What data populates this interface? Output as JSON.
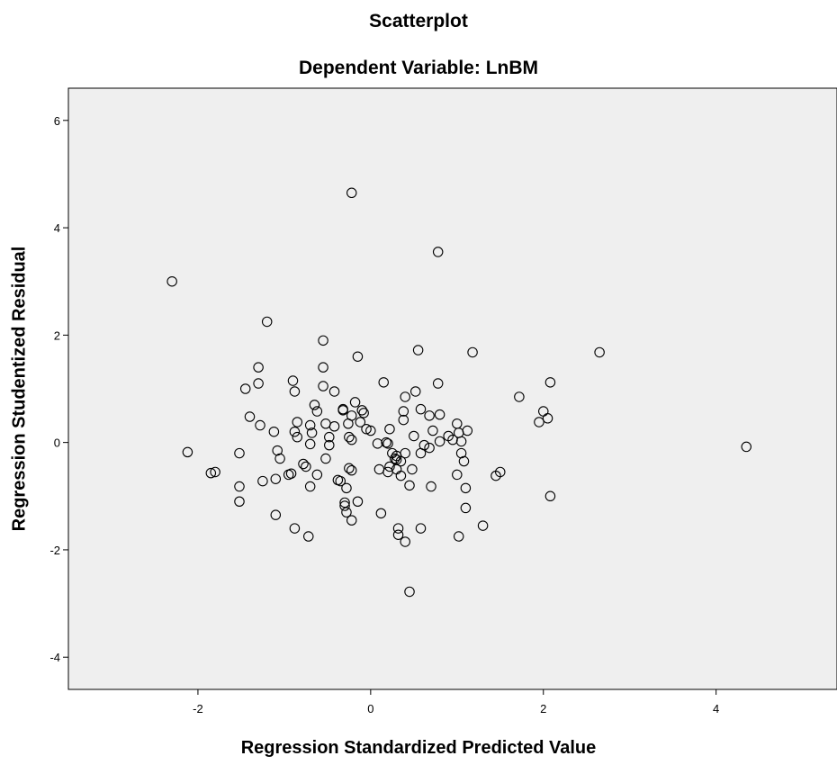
{
  "chart_data": {
    "type": "scatter",
    "title": "Scatterplot",
    "subtitle": "Dependent Variable: LnBM",
    "xlabel": "Regression Standardized Predicted Value",
    "ylabel": "Regression Studentized Residual",
    "xlim": [
      -3.5,
      5.4
    ],
    "ylim": [
      -4.6,
      6.6
    ],
    "xticks": [
      -2,
      0,
      2,
      4
    ],
    "yticks": [
      -4,
      -2,
      0,
      2,
      4,
      6
    ],
    "grid": false,
    "plot_background": "#efefef",
    "marker": "open-circle",
    "points": [
      [
        -2.3,
        3.0
      ],
      [
        -2.12,
        -0.18
      ],
      [
        -1.85,
        -0.57
      ],
      [
        -1.8,
        -0.55
      ],
      [
        -1.52,
        -0.2
      ],
      [
        -1.52,
        -0.82
      ],
      [
        -1.52,
        -1.1
      ],
      [
        -1.45,
        1.0
      ],
      [
        -1.4,
        0.48
      ],
      [
        -1.3,
        1.4
      ],
      [
        -1.3,
        1.1
      ],
      [
        -1.28,
        0.32
      ],
      [
        -1.25,
        -0.72
      ],
      [
        -1.2,
        2.25
      ],
      [
        -1.12,
        0.2
      ],
      [
        -1.1,
        -0.68
      ],
      [
        -1.1,
        -1.35
      ],
      [
        -1.08,
        -0.15
      ],
      [
        -1.05,
        -0.3
      ],
      [
        -0.95,
        -0.6
      ],
      [
        -0.92,
        -0.58
      ],
      [
        -0.9,
        1.15
      ],
      [
        -0.88,
        0.95
      ],
      [
        -0.88,
        0.2
      ],
      [
        -0.88,
        -1.6
      ],
      [
        -0.85,
        0.38
      ],
      [
        -0.85,
        0.1
      ],
      [
        -0.78,
        -0.4
      ],
      [
        -0.75,
        -0.45
      ],
      [
        -0.72,
        -1.75
      ],
      [
        -0.7,
        -0.82
      ],
      [
        -0.7,
        0.32
      ],
      [
        -0.7,
        -0.03
      ],
      [
        -0.68,
        0.18
      ],
      [
        -0.65,
        0.7
      ],
      [
        -0.62,
        0.58
      ],
      [
        -0.62,
        -0.6
      ],
      [
        -0.55,
        1.9
      ],
      [
        -0.55,
        1.4
      ],
      [
        -0.55,
        1.05
      ],
      [
        -0.52,
        0.35
      ],
      [
        -0.52,
        -0.3
      ],
      [
        -0.48,
        0.1
      ],
      [
        -0.48,
        -0.05
      ],
      [
        -0.42,
        0.95
      ],
      [
        -0.42,
        0.3
      ],
      [
        -0.38,
        -0.7
      ],
      [
        -0.35,
        -0.72
      ],
      [
        -0.32,
        0.62
      ],
      [
        -0.32,
        0.6
      ],
      [
        -0.3,
        -1.12
      ],
      [
        -0.3,
        -1.18
      ],
      [
        -0.28,
        -0.85
      ],
      [
        -0.28,
        -1.3
      ],
      [
        -0.26,
        0.35
      ],
      [
        -0.25,
        0.1
      ],
      [
        -0.25,
        -0.48
      ],
      [
        -0.22,
        0.5
      ],
      [
        -0.22,
        0.05
      ],
      [
        -0.22,
        -0.52
      ],
      [
        -0.22,
        -1.45
      ],
      [
        -0.22,
        4.65
      ],
      [
        -0.18,
        0.75
      ],
      [
        -0.15,
        1.6
      ],
      [
        -0.15,
        -1.1
      ],
      [
        -0.12,
        0.38
      ],
      [
        -0.1,
        0.6
      ],
      [
        -0.08,
        0.55
      ],
      [
        -0.05,
        0.25
      ],
      [
        0.0,
        0.22
      ],
      [
        0.08,
        -0.02
      ],
      [
        0.1,
        -0.5
      ],
      [
        0.12,
        -1.32
      ],
      [
        0.15,
        1.12
      ],
      [
        0.18,
        0.0
      ],
      [
        0.2,
        -0.02
      ],
      [
        0.2,
        -0.55
      ],
      [
        0.22,
        0.25
      ],
      [
        0.22,
        -0.45
      ],
      [
        0.25,
        -0.2
      ],
      [
        0.28,
        -0.3
      ],
      [
        0.3,
        -0.25
      ],
      [
        0.3,
        -0.32
      ],
      [
        0.3,
        -0.5
      ],
      [
        0.32,
        -1.6
      ],
      [
        0.32,
        -1.72
      ],
      [
        0.35,
        -0.35
      ],
      [
        0.35,
        -0.62
      ],
      [
        0.38,
        0.58
      ],
      [
        0.38,
        0.42
      ],
      [
        0.4,
        0.85
      ],
      [
        0.4,
        -0.2
      ],
      [
        0.4,
        -1.85
      ],
      [
        0.45,
        -0.8
      ],
      [
        0.45,
        -2.78
      ],
      [
        0.48,
        -0.5
      ],
      [
        0.5,
        0.12
      ],
      [
        0.52,
        0.95
      ],
      [
        0.55,
        1.72
      ],
      [
        0.58,
        0.62
      ],
      [
        0.58,
        -0.2
      ],
      [
        0.58,
        -1.6
      ],
      [
        0.62,
        -0.05
      ],
      [
        0.68,
        -0.1
      ],
      [
        0.68,
        0.5
      ],
      [
        0.7,
        -0.82
      ],
      [
        0.72,
        0.22
      ],
      [
        0.78,
        3.55
      ],
      [
        0.78,
        1.1
      ],
      [
        0.8,
        0.52
      ],
      [
        0.8,
        0.02
      ],
      [
        0.9,
        0.12
      ],
      [
        0.95,
        0.05
      ],
      [
        1.0,
        0.35
      ],
      [
        1.0,
        -0.6
      ],
      [
        1.02,
        0.18
      ],
      [
        1.02,
        -1.75
      ],
      [
        1.05,
        -0.2
      ],
      [
        1.05,
        0.02
      ],
      [
        1.08,
        -0.35
      ],
      [
        1.1,
        -0.85
      ],
      [
        1.1,
        -1.22
      ],
      [
        1.12,
        0.22
      ],
      [
        1.18,
        1.68
      ],
      [
        1.3,
        -1.55
      ],
      [
        1.45,
        -0.62
      ],
      [
        1.5,
        -0.55
      ],
      [
        1.72,
        0.85
      ],
      [
        1.95,
        0.38
      ],
      [
        2.0,
        0.58
      ],
      [
        2.05,
        0.45
      ],
      [
        2.08,
        1.12
      ],
      [
        2.08,
        -1.0
      ],
      [
        2.65,
        1.68
      ],
      [
        4.35,
        -0.08
      ]
    ]
  }
}
